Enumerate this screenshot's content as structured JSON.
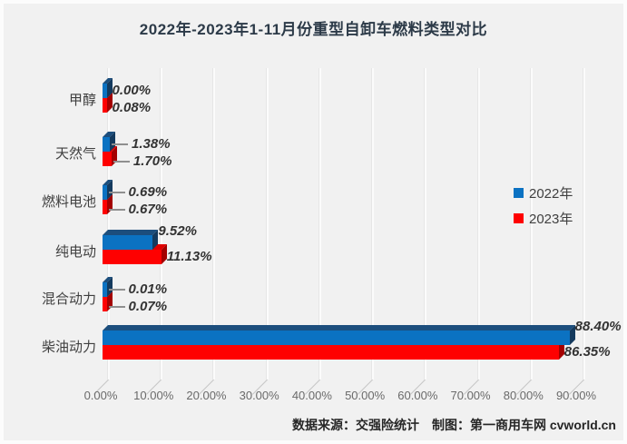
{
  "title": "2022年-2023年1-11月份重型自卸车燃料类型对比",
  "footer": {
    "text": "数据来源：交强险统计　制图：第一商用车网 cvworld.cn"
  },
  "legend": [
    {
      "label": "2022年",
      "color": "#0B72C2"
    },
    {
      "label": "2023年",
      "color": "#FE0101"
    }
  ],
  "colors": {
    "background": "#F1F1F1",
    "blue": "#0B72C2",
    "blue_top": "#1C4E7D",
    "blue_side": "#143A5E",
    "red": "#FE0101",
    "red_top": "#E00000",
    "red_side": "#A40000"
  },
  "chart_data": {
    "type": "bar",
    "orientation": "horizontal",
    "title": "2022年-2023年1-11月份重型自卸车燃料类型对比",
    "categories": [
      "甲醇",
      "天然气",
      "燃料电池",
      "纯电动",
      "混合动力",
      "柴油动力"
    ],
    "series": [
      {
        "name": "2022年",
        "color": "#0B72C2",
        "values": [
          0.0,
          1.38,
          0.69,
          9.52,
          0.01,
          88.4
        ]
      },
      {
        "name": "2023年",
        "color": "#FE0101",
        "values": [
          0.08,
          1.7,
          0.67,
          11.13,
          0.07,
          86.35
        ]
      }
    ],
    "value_label_format": "percent_2dp",
    "xlim": [
      0,
      90
    ],
    "x_ticks": [
      "0.00%",
      "10.00%",
      "20.00%",
      "30.00%",
      "40.00%",
      "50.00%",
      "60.00%",
      "70.00%",
      "80.00%",
      "90.00%"
    ],
    "grid": true,
    "style": "3d",
    "legend_position": "middle-right"
  }
}
